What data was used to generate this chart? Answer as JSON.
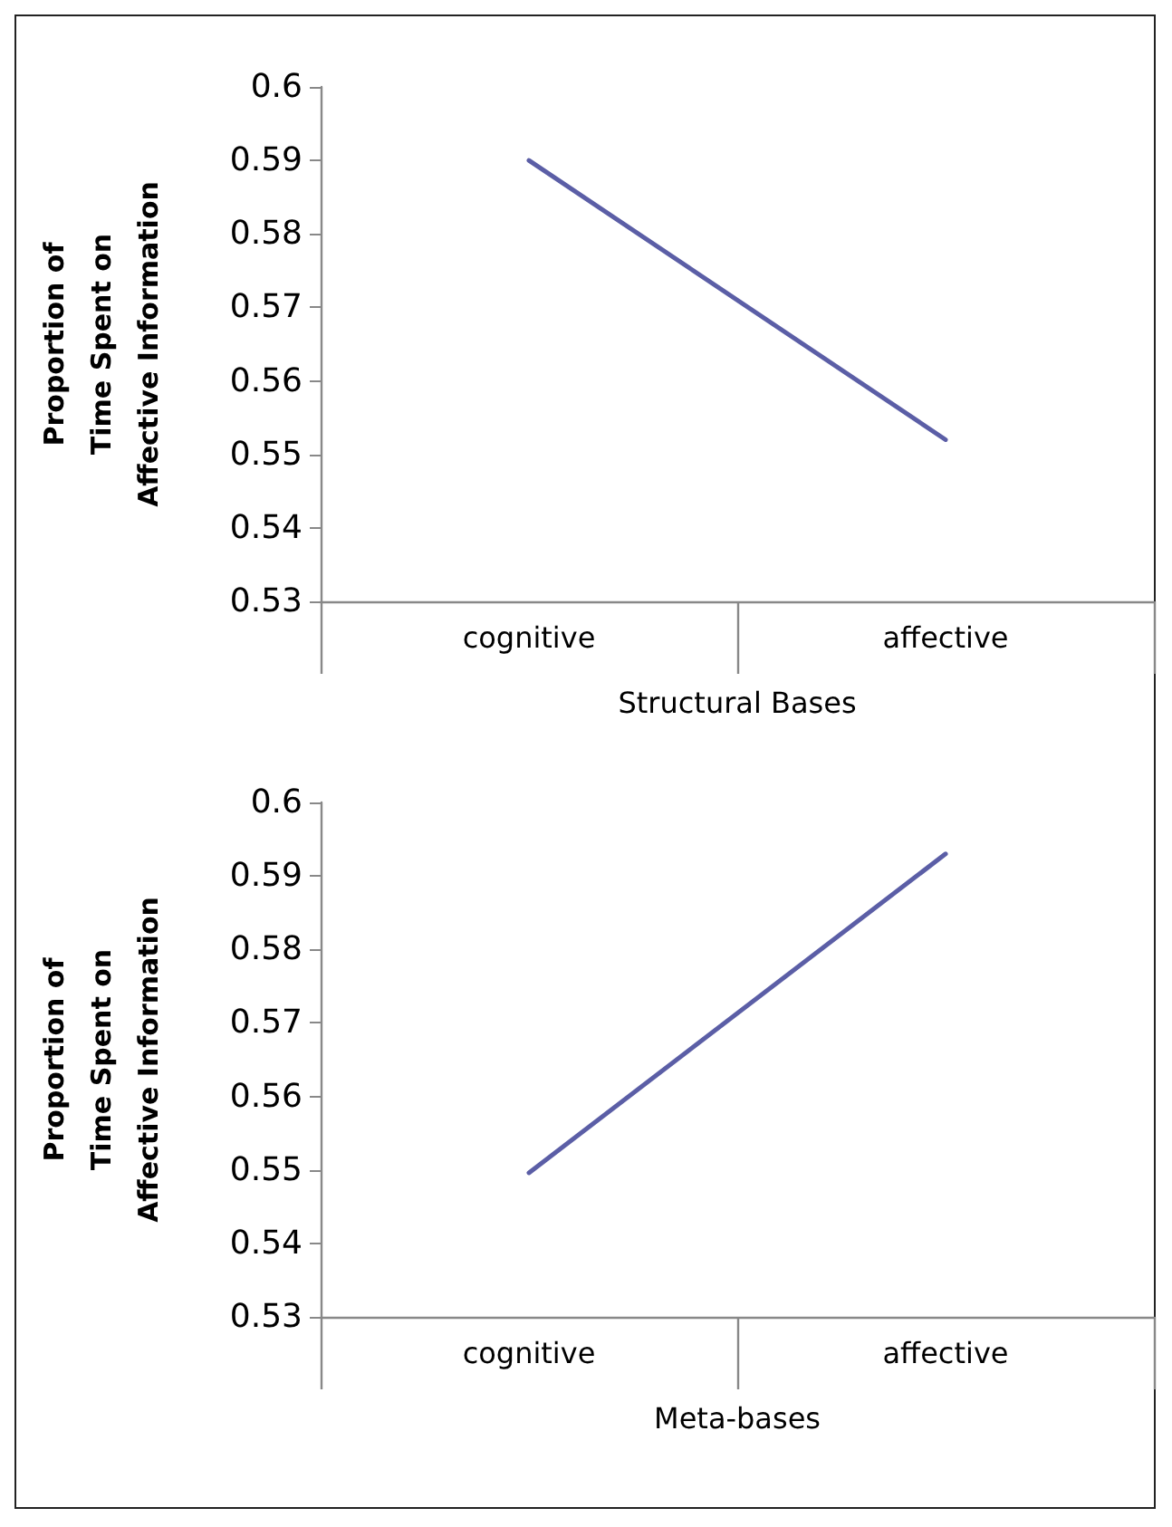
{
  "chart_data": [
    {
      "type": "line",
      "xlabel": "Structural Bases",
      "ylabel": "Proportion of\nTime Spent on\nAffective Information",
      "categories": [
        "cognitive",
        "affective"
      ],
      "series": [
        {
          "color": "#5b5ea6",
          "values": [
            0.59,
            0.552
          ]
        }
      ],
      "ylim": [
        0.53,
        0.6
      ],
      "yticks": [
        0.53,
        0.54,
        0.55,
        0.56,
        0.57,
        0.58,
        0.59,
        0.6
      ],
      "grid": false,
      "marker": "none",
      "line_style": "solid"
    },
    {
      "type": "line",
      "xlabel": "Meta-bases",
      "ylabel": "Proportion of\nTime Spent on\nAffective Information",
      "categories": [
        "cognitive",
        "affective"
      ],
      "series": [
        {
          "color": "#5b5ea6",
          "values": [
            0.5496,
            0.593
          ]
        }
      ],
      "ylim": [
        0.53,
        0.6
      ],
      "yticks": [
        0.53,
        0.54,
        0.55,
        0.56,
        0.57,
        0.58,
        0.59,
        0.6
      ],
      "grid": false,
      "marker": "none",
      "line_style": "solid"
    }
  ]
}
